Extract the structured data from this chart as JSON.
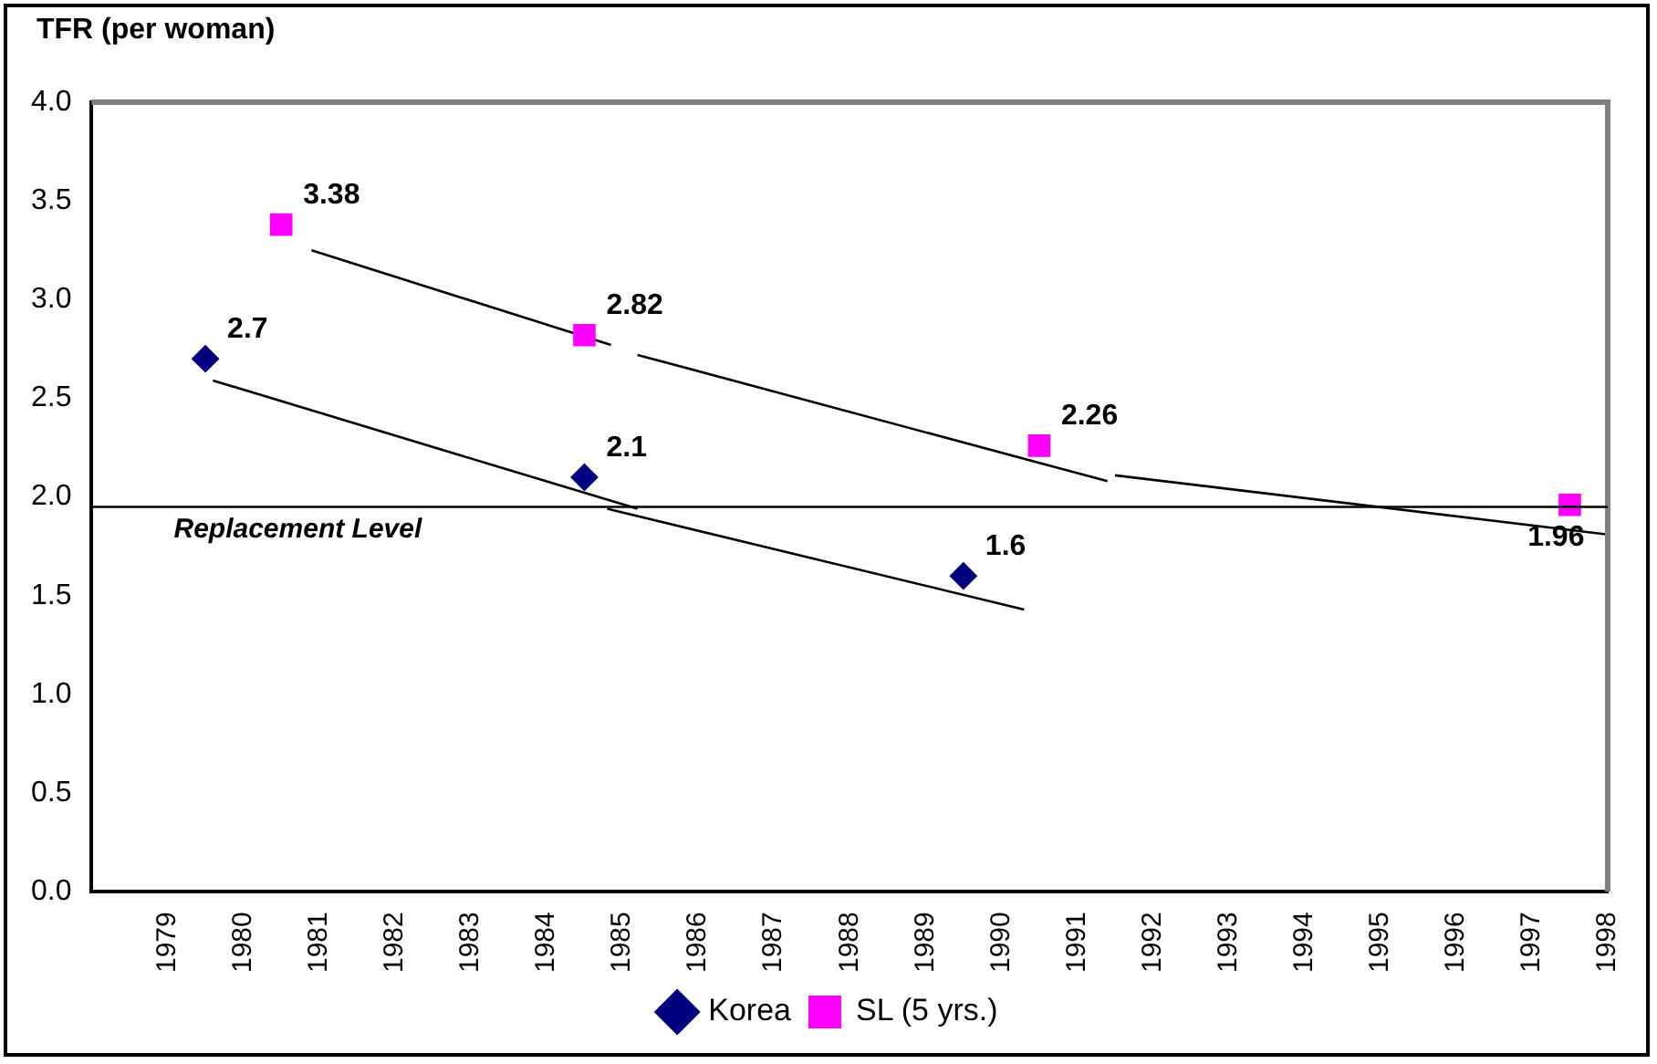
{
  "chart_data": {
    "type": "scatter",
    "title": "TFR (per woman)",
    "xlim": [
      1978,
      1998
    ],
    "xticks": [
      1979,
      1980,
      1981,
      1982,
      1983,
      1984,
      1985,
      1986,
      1987,
      1988,
      1989,
      1990,
      1991,
      1992,
      1993,
      1994,
      1995,
      1996,
      1997,
      1998
    ],
    "ylim": [
      0,
      4
    ],
    "yticks": [
      {
        "value": 0,
        "label": "0.0"
      },
      {
        "value": 0.5,
        "label": "0.5"
      },
      {
        "value": 1,
        "label": "1.0"
      },
      {
        "value": 1.5,
        "label": "1.5"
      },
      {
        "value": 2,
        "label": "2.0"
      },
      {
        "value": 2.5,
        "label": "2.5"
      },
      {
        "value": 3,
        "label": "3.0"
      },
      {
        "value": 3.5,
        "label": "3.5"
      },
      {
        "value": 4,
        "label": "4.0"
      }
    ],
    "grid": false,
    "legend": "bottom",
    "ref_lines": [
      {
        "axis": "y",
        "value": 1.95,
        "label": "Replacement Level",
        "color": "#000000"
      }
    ],
    "series": [
      {
        "name": "Korea",
        "color": "#000080",
        "marker": "diamond",
        "x": [
          1979.5,
          1984.5,
          1989.5
        ],
        "values": [
          2.7,
          2.1,
          1.6
        ],
        "value_labels": [
          "2.7",
          "2.1",
          "1.6"
        ]
      },
      {
        "name": "SL (5 yrs.)",
        "color": "#ff00ff",
        "marker": "square",
        "x": [
          1980.5,
          1984.5,
          1990.5,
          1997.5
        ],
        "values": [
          3.38,
          2.82,
          2.26,
          1.96
        ],
        "value_labels": [
          "3.38",
          "2.82",
          "2.26",
          "1.96"
        ]
      },
      {
        "type": "line",
        "color": "#000000",
        "marker": "none",
        "x": [
          1980.9,
          1984.85
        ],
        "values": [
          3.25,
          2.77
        ]
      },
      {
        "type": "line",
        "color": "#000000",
        "marker": "none",
        "x": [
          1985.2,
          1991.4
        ],
        "values": [
          2.72,
          2.08
        ]
      },
      {
        "type": "line",
        "color": "#000000",
        "marker": "none",
        "x": [
          1991.5,
          1998
        ],
        "values": [
          2.11,
          1.81
        ]
      },
      {
        "type": "line",
        "color": "#000000",
        "marker": "none",
        "x": [
          1979.6,
          1985.2
        ],
        "values": [
          2.59,
          1.94
        ]
      },
      {
        "type": "line",
        "color": "#000000",
        "marker": "none",
        "x": [
          1984.8,
          1990.3
        ],
        "values": [
          1.94,
          1.43
        ]
      }
    ]
  }
}
